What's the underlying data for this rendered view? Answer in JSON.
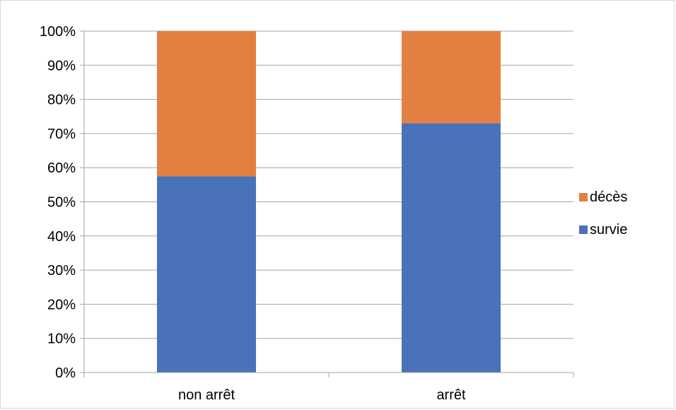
{
  "chart_data": {
    "type": "bar",
    "stacked": true,
    "percent_stacked": true,
    "categories": [
      "non arrêt",
      "arrêt"
    ],
    "series": [
      {
        "name": "survie",
        "values": [
          57.5,
          73
        ],
        "color": "#4a72b8"
      },
      {
        "name": "décès",
        "values": [
          42.5,
          27
        ],
        "color": "#e38041"
      }
    ],
    "y_ticks": [
      "0%",
      "10%",
      "20%",
      "30%",
      "40%",
      "50%",
      "60%",
      "70%",
      "80%",
      "90%",
      "100%"
    ],
    "ylim": [
      0,
      100
    ],
    "grid": true,
    "gridline_color": "#a6a6a6",
    "legend_position": "right",
    "legend_order": [
      "décès",
      "survie"
    ]
  }
}
